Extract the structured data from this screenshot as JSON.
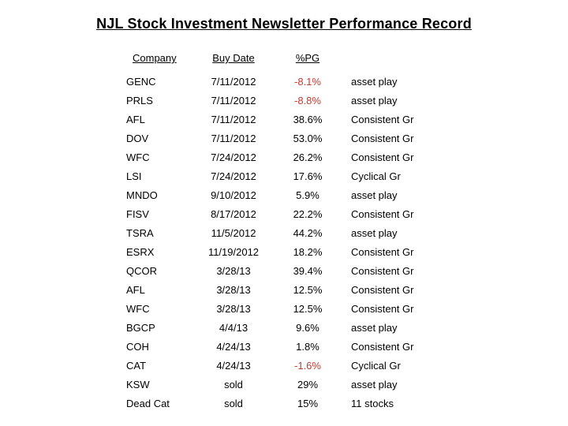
{
  "title": "NJL Stock Investment Newsletter Performance Record",
  "table": {
    "headers": {
      "company": "Company",
      "buy_date": "Buy Date",
      "pg": "%PG"
    },
    "rows": [
      {
        "company": "GENC",
        "buy_date": "7/11/2012",
        "pg": "-8.1%",
        "negative": true,
        "category": "asset play"
      },
      {
        "company": "PRLS",
        "buy_date": "7/11/2012",
        "pg": "-8.8%",
        "negative": true,
        "category": "asset play"
      },
      {
        "company": "AFL",
        "buy_date": "7/11/2012",
        "pg": "38.6%",
        "negative": false,
        "category": "Consistent Gr"
      },
      {
        "company": "DOV",
        "buy_date": "7/11/2012",
        "pg": "53.0%",
        "negative": false,
        "category": "Consistent Gr"
      },
      {
        "company": "WFC",
        "buy_date": "7/24/2012",
        "pg": "26.2%",
        "negative": false,
        "category": "Consistent Gr"
      },
      {
        "company": "LSI",
        "buy_date": "7/24/2012",
        "pg": "17.6%",
        "negative": false,
        "category": "Cyclical Gr"
      },
      {
        "company": "MNDO",
        "buy_date": "9/10/2012",
        "pg": "5.9%",
        "negative": false,
        "category": "asset play"
      },
      {
        "company": "FISV",
        "buy_date": "8/17/2012",
        "pg": "22.2%",
        "negative": false,
        "category": "Consistent Gr"
      },
      {
        "company": "TSRA",
        "buy_date": "11/5/2012",
        "pg": "44.2%",
        "negative": false,
        "category": "asset play"
      },
      {
        "company": "ESRX",
        "buy_date": "11/19/2012",
        "pg": "18.2%",
        "negative": false,
        "category": "Consistent Gr"
      },
      {
        "company": "QCOR",
        "buy_date": "3/28/13",
        "pg": "39.4%",
        "negative": false,
        "category": "Consistent Gr"
      },
      {
        "company": "AFL",
        "buy_date": "3/28/13",
        "pg": "12.5%",
        "negative": false,
        "category": "Consistent Gr"
      },
      {
        "company": "WFC",
        "buy_date": "3/28/13",
        "pg": "12.5%",
        "negative": false,
        "category": "Consistent Gr"
      },
      {
        "company": "BGCP",
        "buy_date": "4/4/13",
        "pg": "9.6%",
        "negative": false,
        "category": "asset play"
      },
      {
        "company": "COH",
        "buy_date": "4/24/13",
        "pg": "1.8%",
        "negative": false,
        "category": "Consistent Gr"
      },
      {
        "company": "CAT",
        "buy_date": "4/24/13",
        "pg": "-1.6%",
        "negative": true,
        "category": "Cyclical Gr"
      },
      {
        "company": "KSW",
        "buy_date": "sold",
        "pg": "29%",
        "negative": false,
        "category": "asset play"
      },
      {
        "company": "Dead Cat",
        "buy_date": "sold",
        "pg": "15%",
        "negative": false,
        "category": "11 stocks"
      }
    ]
  },
  "colors": {
    "text": "#000000",
    "background": "#ffffff",
    "negative_pct": "#c13b32"
  }
}
